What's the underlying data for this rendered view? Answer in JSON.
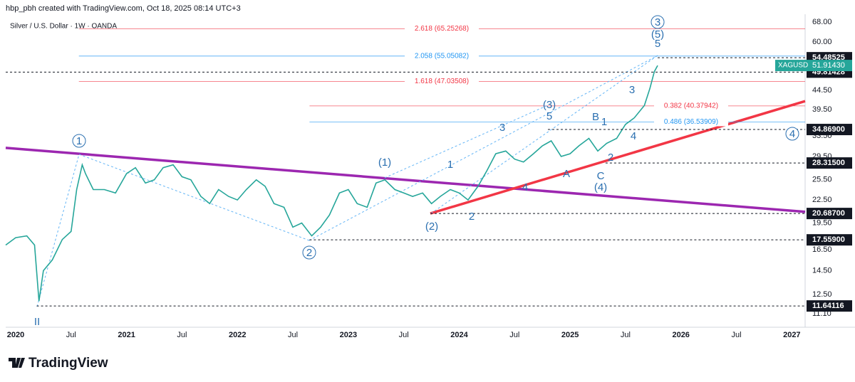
{
  "header": {
    "attribution": "hbp_pbh created with TradingView.com, Oct 18, 2025 08:14 UTC+3",
    "symbol": "Silver / U.S. Dollar · 1W · OANDA"
  },
  "footer": {
    "logo": "TradingView"
  },
  "chart_data": {
    "type": "line",
    "log_scale": true,
    "color": "#26a69a",
    "xlim": [
      2019.91,
      2027.12
    ],
    "ylim": [
      10.2,
      71.4
    ],
    "xticks": [
      2020,
      {
        "value": 2020.5,
        "label": "Jul"
      },
      2021,
      {
        "value": 2021.5,
        "label": "Jul"
      },
      2022,
      {
        "value": 2022.5,
        "label": "Jul"
      },
      2023,
      {
        "value": 2023.5,
        "label": "Jul"
      },
      2024,
      {
        "value": 2024.5,
        "label": "Jul"
      },
      2025,
      {
        "value": 2025.5,
        "label": "Jul"
      },
      2026,
      {
        "value": 2026.5,
        "label": "Jul"
      },
      2027
    ],
    "yticks": [
      {
        "value": 68,
        "label": "68.00"
      },
      {
        "value": 60,
        "label": "60.00"
      },
      {
        "value": 44.5,
        "label": "44.50"
      },
      {
        "value": 39.5,
        "label": "39.50"
      },
      {
        "value": 33.5,
        "label": "33.50"
      },
      {
        "value": 29.5,
        "label": "29.50"
      },
      {
        "value": 25.5,
        "label": "25.50"
      },
      {
        "value": 22.5,
        "label": "22.50"
      },
      {
        "value": 19.5,
        "label": "19.50"
      },
      {
        "value": 16.5,
        "label": "16.50"
      },
      {
        "value": 14.5,
        "label": "14.50"
      },
      {
        "value": 12.5,
        "label": "12.50"
      },
      {
        "value": 11.1,
        "label": "11.10"
      }
    ],
    "x": [
      2019.91,
      2020.0,
      2020.1,
      2020.17,
      2020.21,
      2020.25,
      2020.33,
      2020.42,
      2020.5,
      2020.55,
      2020.6,
      2020.63,
      2020.7,
      2020.8,
      2020.9,
      2021.0,
      2021.08,
      2021.17,
      2021.25,
      2021.33,
      2021.42,
      2021.5,
      2021.58,
      2021.67,
      2021.75,
      2021.83,
      2021.92,
      2022.0,
      2022.08,
      2022.17,
      2022.25,
      2022.33,
      2022.42,
      2022.5,
      2022.58,
      2022.67,
      2022.75,
      2022.83,
      2022.92,
      2023.0,
      2023.08,
      2023.17,
      2023.25,
      2023.33,
      2023.42,
      2023.5,
      2023.58,
      2023.67,
      2023.75,
      2023.83,
      2023.92,
      2024.0,
      2024.08,
      2024.17,
      2024.25,
      2024.33,
      2024.42,
      2024.5,
      2024.58,
      2024.67,
      2024.75,
      2024.83,
      2024.92,
      2025.0,
      2025.08,
      2025.17,
      2025.25,
      2025.33,
      2025.42,
      2025.5,
      2025.58,
      2025.67,
      2025.72,
      2025.76,
      2025.79
    ],
    "values": [
      17.0,
      17.8,
      18.0,
      17.0,
      12.0,
      14.5,
      15.5,
      17.6,
      18.5,
      24.0,
      28.0,
      26.5,
      24.0,
      24.0,
      23.5,
      26.5,
      27.5,
      25.0,
      25.5,
      27.5,
      28.0,
      26.0,
      25.5,
      23.0,
      22.0,
      24.0,
      23.0,
      22.5,
      24.0,
      25.5,
      24.5,
      22.0,
      21.5,
      19.0,
      19.5,
      18.0,
      19.0,
      20.5,
      23.5,
      24.0,
      22.0,
      21.5,
      25.0,
      25.5,
      24.0,
      23.5,
      23.0,
      23.5,
      22.0,
      23.0,
      24.0,
      23.5,
      22.5,
      24.5,
      27.0,
      30.0,
      30.5,
      29.0,
      28.5,
      30.0,
      31.5,
      32.5,
      29.5,
      30.0,
      31.5,
      33.0,
      30.5,
      32.0,
      33.0,
      36.0,
      37.5,
      40.5,
      45.0,
      50.0,
      51.9143
    ],
    "last": {
      "symbol": "XAGUSD",
      "value": 51.9143,
      "label": "51.91430"
    },
    "levels": [
      {
        "value": 54.48525,
        "label": "54.48525",
        "x": 2025.79
      },
      {
        "value": 49.81428,
        "label": "49.81428",
        "x": 2019.91
      },
      {
        "value": 34.869,
        "label": "34.86900",
        "x": 2024.8
      },
      {
        "value": 28.315,
        "label": "28.31500",
        "x": 2025.32
      },
      {
        "value": 20.687,
        "label": "20.68700",
        "x": 2023.74
      },
      {
        "value": 17.559,
        "label": "17.55900",
        "x": 2022.65
      },
      {
        "value": 11.64116,
        "label": "11.64116",
        "x": 2020.19
      }
    ],
    "fib_levels": [
      {
        "value": 65.25268,
        "label": "2.618 (65.25268)",
        "x": 2020.57,
        "color": "#f23645"
      },
      {
        "value": 55.05082,
        "label": "2.058 (55.05082)",
        "x": 2020.57,
        "color": "#2196f3"
      },
      {
        "value": 47.03508,
        "label": "1.618 (47.03508)",
        "x": 2020.57,
        "color": "#f23645"
      },
      {
        "value": 40.37942,
        "label": "0.382 (40.37942)",
        "x": 2022.65,
        "color": "#f23645"
      },
      {
        "value": 36.53909,
        "label": "0.486 (36.53909)",
        "x": 2022.65,
        "color": "#2196f3"
      }
    ],
    "trendlines": [
      {
        "x": [
          2019.91,
          2027.12
        ],
        "y": [
          31.1,
          20.9
        ],
        "color": "#9c27b0"
      },
      {
        "x": [
          2023.74,
          2027.12
        ],
        "y": [
          20.69,
          41.6
        ],
        "color": "#f23645"
      }
    ],
    "annotations": [
      {
        "text": "1",
        "circled": true
      },
      {
        "text": "2",
        "circled": true
      },
      {
        "text": "(1)"
      },
      {
        "text": "(2)"
      },
      {
        "text": "1"
      },
      {
        "text": "2"
      },
      {
        "text": "3"
      },
      {
        "text": "4"
      },
      {
        "text": "(3)"
      },
      {
        "text": "5"
      },
      {
        "text": "A"
      },
      {
        "text": "B"
      },
      {
        "text": "1"
      },
      {
        "text": "C"
      },
      {
        "text": "(4)"
      },
      {
        "text": "2"
      },
      {
        "text": "4"
      },
      {
        "text": "3"
      },
      {
        "text": "3",
        "circled": true
      },
      {
        "text": "(5)"
      },
      {
        "text": "5"
      },
      {
        "text": "4",
        "circled": true
      },
      {
        "text": "II"
      }
    ]
  }
}
